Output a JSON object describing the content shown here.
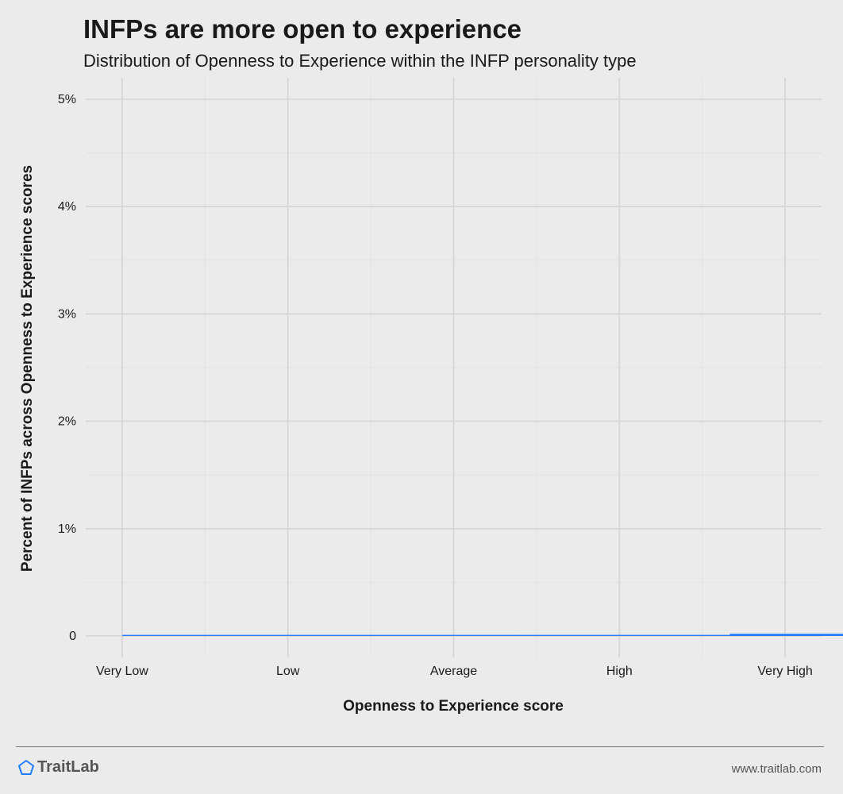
{
  "chart_data": {
    "type": "bar",
    "title": "INFPs are more open to experience",
    "subtitle": "Distribution of Openness to Experience within the INFP personality type",
    "xlabel": "Openness to Experience score",
    "ylabel": "Percent of INFPs across Openness to Experience scores",
    "x_tick_labels": [
      "Very Low",
      "Low",
      "Average",
      "High",
      "Very High"
    ],
    "x_tick_values": [
      0,
      25,
      50,
      75,
      100
    ],
    "y_tick_labels": [
      "0",
      "1%",
      "2%",
      "3%",
      "4%",
      "5%"
    ],
    "y_tick_values": [
      0,
      1,
      2,
      3,
      4,
      5
    ],
    "xlim": [
      -5.5,
      105.5
    ],
    "ylim": [
      -0.2,
      5.2
    ],
    "bin_width": 0.8333,
    "series": [
      {
        "color": "#1f7cff",
        "values": [
          0.01,
          0.01,
          0.01,
          0.01,
          0.01,
          0.01,
          0.01,
          0.01,
          0.01,
          0.01,
          0.01,
          0.01,
          0.01,
          0.01,
          0.01,
          0.01,
          0.01,
          0.01,
          0.01,
          0.01,
          0.01,
          0.01,
          0.01,
          0.01,
          0.01,
          0.01,
          0.01,
          0.01,
          0.01,
          0.01,
          0.01,
          0.01,
          0.01,
          0.01,
          0.01,
          0.01,
          0.01,
          0.01,
          0.01,
          0.01,
          0.01,
          0.01,
          0.01,
          0.01,
          0.01,
          0.01,
          0.01,
          0.01,
          0.01,
          0.01,
          0.01,
          0.01,
          0.01,
          0.01,
          0.01,
          0.01,
          0.01,
          0.01,
          0.01,
          0.01,
          0.01,
          0.01,
          0.01,
          0.01,
          0.01,
          0.01,
          0.01,
          0.01,
          0.01,
          0.01,
          0.01,
          0.01,
          0.01,
          0.01,
          0.01,
          0.01,
          0.01,
          0.01,
          0.01,
          0.01,
          0.01,
          0.01,
          0.01,
          0.01,
          0.01,
          0.01,
          0.01,
          0.01,
          0.01,
          0.01,
          0.01,
          0.01,
          0.01,
          0.01,
          0.01,
          0.01,
          0.01,
          0.01,
          0.01,
          0.01,
          0.01,
          0.01,
          0.01,
          0.01,
          0.01,
          0.01,
          0.01,
          0.01,
          0.01,
          0.01,
          0.02,
          0.02,
          0.02,
          0.02,
          0.02,
          0.02,
          0.02,
          0.02,
          0.02,
          0.02,
          0.02,
          0.02,
          0.02,
          0.02,
          0.02,
          0.02,
          0.02,
          0.02,
          0.02,
          0.02,
          0.02,
          0.02,
          0.02,
          0.02,
          0.02,
          0.02,
          0.02,
          0.02,
          0.02,
          0.02,
          0.02,
          0.02,
          0.02,
          0.02,
          0.02,
          0.02,
          0.02,
          0.02,
          0.02,
          0.02,
          0.02,
          0.02,
          0.02,
          0.02,
          0.02,
          0.02,
          0.02,
          0.02,
          0.02,
          0.02,
          0.02,
          0.02,
          0.02,
          0.02,
          0.02,
          0.02,
          0.02,
          0.02,
          0.02,
          0.02,
          0.02,
          0.02,
          0.02,
          0.02,
          0.02,
          0.02,
          0.02,
          0.02,
          0.02,
          0.02,
          0.02,
          0.02,
          0.02,
          0.02,
          0.02,
          0.02,
          0.02,
          0.02,
          0.02,
          0.02,
          0.02,
          0.02,
          0.02,
          0.02,
          0.02,
          0.02,
          0.02,
          0.02,
          0.02,
          0.02,
          0.02,
          0.02,
          0.02,
          0.02,
          0.02,
          0.02,
          0.02,
          0.02,
          0.02,
          0.02,
          0.02,
          0.02,
          0.02,
          0.02,
          0.02,
          0.02,
          0.02,
          0.02,
          0.02,
          0.02,
          0.02,
          0.02,
          0.02,
          0.02,
          0.02,
          0.02,
          0.02,
          0.02,
          0.02,
          0.02,
          0.02,
          0.02,
          0.02,
          0.02,
          0.02,
          0.02,
          0.02,
          0.02,
          0.02,
          0.02,
          0.02,
          0.02,
          0.02,
          0.02,
          0.02,
          0.02,
          0.02,
          0.02,
          0.02,
          0.02,
          0.02,
          0.02,
          0.02,
          0.02,
          0.02,
          0.02,
          0.02,
          0.02,
          0.02,
          0.02,
          0.02,
          0.02,
          0.02,
          0.02,
          0.02,
          0.02,
          0.02,
          0.02,
          0.02,
          0.02,
          0.02,
          0.02,
          0.02,
          0.02,
          0.02,
          0.02,
          0.02,
          0.02,
          0.02,
          0.02,
          0.02,
          0.02,
          0.02,
          0.02,
          0.02,
          0.02,
          0.02,
          0.02,
          0.02,
          0.02,
          0.02,
          0.02,
          0.02,
          0.02,
          0.02,
          0.02,
          0.02,
          0.02,
          0.02,
          0.02,
          0.02,
          0.02,
          0.02,
          0.02,
          0.02,
          0.02,
          0.02,
          0.02,
          0.02,
          0.02,
          0.02,
          0.02,
          0.02,
          0.02,
          0.02,
          0.02,
          0.02,
          0.02,
          0.02,
          0.02,
          0.02,
          0.02,
          0.02,
          0.02,
          0.02,
          0.02,
          0.02,
          0.02,
          0.02,
          0.02,
          0.02,
          0.02,
          0.02,
          0.02,
          0.02,
          0.02,
          0.02,
          0.02,
          0.02,
          0.02,
          0.02,
          0.02,
          0.02,
          0.02,
          0.02,
          0.02,
          0.02,
          0.02,
          0.02,
          0.02,
          0.02,
          0.02,
          0.02,
          0.02,
          0.02,
          0.02,
          0.02,
          0.02,
          0.02,
          0.02,
          0.02,
          0.02,
          0.02,
          0.02,
          0.02,
          0.02,
          0.02,
          0.02,
          0.02,
          0.02,
          0.02,
          0.02,
          0.02,
          0.02,
          0.02,
          0.02,
          0.02,
          0.02,
          0.02,
          0.02,
          0.02,
          0.02,
          0.02,
          0.02,
          0.02,
          0.02,
          0.02,
          0.02,
          0.02,
          0.02,
          0.02,
          0.02,
          0.02,
          0.02,
          0.02,
          0.02,
          0.02,
          0.02,
          0.02,
          0.02,
          0.02,
          0.02,
          0.02,
          0.02,
          0.02,
          0.02,
          0.02,
          0.02,
          0.02,
          0.02,
          0.02,
          0.02,
          0.02,
          0.02,
          0.02,
          0.02,
          0.02,
          0.02,
          0.02,
          0.02,
          0.02,
          0.02,
          0.02,
          0.02,
          0.02,
          0.02,
          0.02,
          0.02,
          0.02,
          0.02,
          0.02,
          0.02,
          0.02,
          0.02,
          0.02,
          0.02,
          0.02,
          0.02,
          0.02,
          0.02,
          0.02,
          0.02,
          0.02,
          0.02,
          0.02,
          0.02,
          0.02,
          0.02,
          0.02,
          0.02,
          0.02,
          0.02,
          0.02,
          0.02,
          0.02,
          0.02,
          0.02,
          0.02,
          0.02,
          0.02,
          0.02,
          0.02,
          0.02,
          0.02,
          0.02,
          0.02,
          0.02,
          0.02,
          0.02,
          0.02,
          0.02,
          0.02,
          0.02,
          0.02,
          0.02,
          0.02,
          0.02,
          0.02,
          0.02,
          0.02,
          0.02,
          0.02,
          0.02,
          0.02,
          0.02,
          0.02,
          0.02,
          0.02,
          0.02,
          0.02,
          0.02,
          0.02,
          0.02,
          0.02,
          0.02,
          0.02,
          0.02,
          0.02,
          0.02,
          0.02,
          0.02,
          0.02,
          0.02,
          0.02,
          0.02,
          0.02,
          0.02,
          0.02,
          0.02,
          0.02,
          0.02,
          0.02,
          0.02,
          0.02,
          0.02,
          0.02,
          0.02,
          0.02,
          0.02,
          0.02,
          0.02,
          0.02,
          0.02,
          0.02,
          0.02,
          0.02,
          0.02,
          0.02,
          0.02
        ]
      }
    ],
    "grid": true,
    "legend": "none"
  },
  "footer": {
    "brand_name": "TraitLab",
    "brand_color": "#1f7cff",
    "brand_icon": "pentagon-icon",
    "url": "www.traitlab.com"
  }
}
